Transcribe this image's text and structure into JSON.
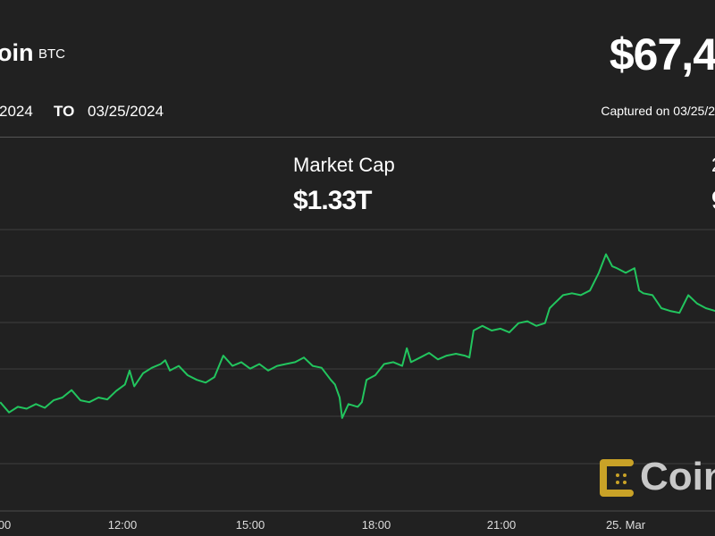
{
  "header": {
    "asset_name_visible": "oin",
    "symbol": "BTC",
    "price_visible": "$67,4",
    "from_date_visible": "2024",
    "to_label": "TO",
    "to_date": "03/25/2024",
    "captured_visible": "Captured on 03/25/2"
  },
  "stats": {
    "market_cap_label": "Market Cap",
    "market_cap_value": "$1.33T",
    "right_label_visible": "2",
    "right_value_visible": "9"
  },
  "logo": {
    "text_visible": "Coin",
    "color": "#c9a227"
  },
  "chart_data": {
    "type": "line",
    "title": "",
    "xlabel": "",
    "ylabel": "",
    "x_unit": "hour of day (values above 24 are on 25 Mar)",
    "x_tick_labels": [
      "00",
      "12:00",
      "15:00",
      "18:00",
      "21:00",
      "25. Mar"
    ],
    "grid": "horizontal",
    "line_color": "#22c55e",
    "background": "#212121",
    "series": [
      {
        "x": [
          9.09,
          9.3,
          9.51,
          9.72,
          9.94,
          10.15,
          10.36,
          10.57,
          10.79,
          11.0,
          11.21,
          11.43,
          11.64,
          11.85,
          12.06,
          12.17,
          12.28,
          12.49,
          12.7,
          12.91,
          13.02,
          13.13,
          13.34,
          13.55,
          13.77,
          13.98,
          14.19,
          14.4,
          14.62,
          14.83,
          15.04,
          15.26,
          15.47,
          15.68,
          15.89,
          16.11,
          16.32,
          16.53,
          16.74,
          16.96,
          17.06,
          17.17,
          17.23,
          17.38,
          17.6,
          17.7,
          17.81,
          18.02,
          18.23,
          18.45,
          18.66,
          18.77,
          18.87,
          19.09,
          19.3,
          19.51,
          19.72,
          19.94,
          20.15,
          20.26,
          20.36,
          20.57,
          20.79,
          21.0,
          21.21,
          21.43,
          21.64,
          21.85,
          22.06,
          22.17,
          22.28,
          22.49,
          22.7,
          22.91,
          23.13,
          23.34,
          23.51,
          23.66,
          23.77,
          23.98,
          24.19,
          24.3,
          24.4,
          24.62,
          24.83,
          25.04,
          25.26,
          25.47,
          25.68,
          25.89,
          26.11
        ],
        "y": [
          66390,
          66280,
          66340,
          66320,
          66370,
          66330,
          66410,
          66440,
          66520,
          66410,
          66390,
          66440,
          66420,
          66510,
          66580,
          66730,
          66560,
          66700,
          66760,
          66800,
          66840,
          66730,
          66780,
          66680,
          66630,
          66600,
          66660,
          66890,
          66780,
          66820,
          66750,
          66800,
          66730,
          66780,
          66800,
          66820,
          66870,
          66780,
          66760,
          66630,
          66580,
          66440,
          66220,
          66370,
          66340,
          66390,
          66630,
          66680,
          66800,
          66820,
          66780,
          66970,
          66820,
          66870,
          66920,
          66850,
          66890,
          66910,
          66890,
          66870,
          67160,
          67210,
          67160,
          67180,
          67140,
          67240,
          67260,
          67210,
          67240,
          67400,
          67450,
          67540,
          67560,
          67540,
          67590,
          67780,
          67980,
          67850,
          67830,
          67780,
          67830,
          67590,
          67560,
          67540,
          67400,
          67370,
          67350,
          67540,
          67450,
          67400,
          67370
        ]
      }
    ]
  }
}
